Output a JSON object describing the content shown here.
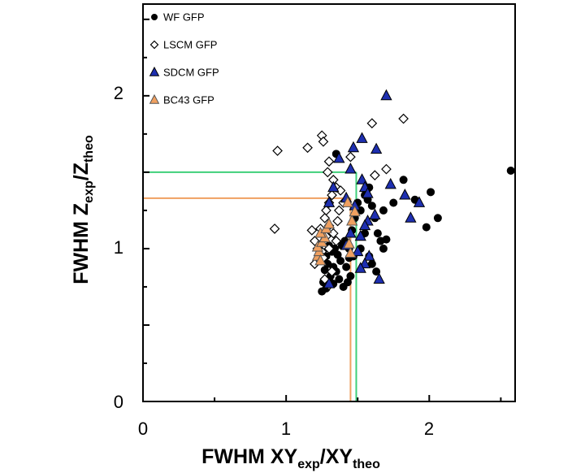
{
  "chart_data": {
    "type": "scatter",
    "xlim": [
      0,
      2.6
    ],
    "ylim": [
      0,
      2.6
    ],
    "x_ticks": [
      "0",
      "1",
      "2"
    ],
    "y_ticks": [
      "0",
      "1",
      "2"
    ],
    "xlabel": {
      "base": "FWHM XY",
      "sub1": "exp",
      "mid": "/XY",
      "sub2": "theo"
    },
    "ylabel": {
      "base": "FWHM Z",
      "sub1": "exp",
      "mid": "/Z",
      "sub2": "theo"
    },
    "legend_position": "top-left",
    "series": [
      {
        "name": "WF GFP",
        "marker": "circle",
        "color": "#000000",
        "edge": "#000000",
        "points": [
          [
            1.25,
            0.72
          ],
          [
            1.26,
            0.78
          ],
          [
            1.28,
            0.74
          ],
          [
            1.3,
            0.8
          ],
          [
            1.27,
            0.86
          ],
          [
            1.29,
            0.9
          ],
          [
            1.31,
            0.82
          ],
          [
            1.33,
            0.77
          ],
          [
            1.35,
            0.85
          ],
          [
            1.37,
            0.8
          ],
          [
            1.4,
            0.75
          ],
          [
            1.43,
            0.78
          ],
          [
            1.45,
            0.82
          ],
          [
            1.42,
            0.88
          ],
          [
            1.38,
            0.92
          ],
          [
            1.36,
            0.96
          ],
          [
            1.34,
            1.0
          ],
          [
            1.32,
            0.98
          ],
          [
            1.3,
            1.02
          ],
          [
            1.28,
            0.95
          ],
          [
            1.33,
            0.88
          ],
          [
            1.39,
            1.02
          ],
          [
            1.41,
            1.05
          ],
          [
            1.44,
            0.94
          ],
          [
            1.46,
            1.12
          ],
          [
            1.48,
            1.2
          ],
          [
            1.5,
            1.3
          ],
          [
            1.52,
            1.25
          ],
          [
            1.55,
            1.35
          ],
          [
            1.57,
            1.32
          ],
          [
            1.58,
            1.4
          ],
          [
            1.6,
            1.28
          ],
          [
            1.62,
            1.2
          ],
          [
            1.64,
            1.1
          ],
          [
            1.66,
            1.05
          ],
          [
            1.68,
            1.0
          ],
          [
            1.7,
            1.06
          ],
          [
            1.68,
            1.25
          ],
          [
            1.6,
            0.9
          ],
          [
            1.58,
            0.95
          ],
          [
            1.63,
            0.85
          ],
          [
            1.75,
            1.3
          ],
          [
            1.82,
            1.45
          ],
          [
            1.9,
            1.32
          ],
          [
            2.01,
            1.37
          ],
          [
            2.06,
            1.2
          ],
          [
            1.98,
            1.14
          ],
          [
            1.35,
            1.62
          ],
          [
            1.47,
            0.95
          ],
          [
            1.52,
            1.0
          ],
          [
            1.55,
            1.1
          ],
          [
            1.44,
            1.0
          ],
          [
            2.57,
            1.51
          ]
        ]
      },
      {
        "name": "LSCM GFP",
        "marker": "diamond",
        "color": "#ffffff",
        "edge": "#000000",
        "points": [
          [
            0.94,
            1.64
          ],
          [
            1.15,
            1.66
          ],
          [
            1.25,
            1.74
          ],
          [
            1.26,
            1.7
          ],
          [
            1.3,
            1.57
          ],
          [
            1.29,
            1.5
          ],
          [
            1.33,
            1.45
          ],
          [
            1.35,
            1.4
          ],
          [
            1.32,
            1.35
          ],
          [
            1.3,
            1.3
          ],
          [
            1.28,
            1.25
          ],
          [
            1.27,
            1.2
          ],
          [
            1.3,
            1.15
          ],
          [
            1.33,
            1.1
          ],
          [
            1.35,
            1.05
          ],
          [
            1.3,
            1.0
          ],
          [
            1.25,
            0.98
          ],
          [
            1.22,
            1.0
          ],
          [
            1.2,
            1.05
          ],
          [
            1.18,
            1.12
          ],
          [
            1.24,
            1.13
          ],
          [
            1.28,
            1.08
          ],
          [
            1.38,
            1.38
          ],
          [
            1.4,
            1.3
          ],
          [
            1.37,
            1.25
          ],
          [
            1.36,
            1.18
          ],
          [
            1.2,
            0.9
          ],
          [
            1.26,
            0.94
          ],
          [
            1.27,
            0.8
          ],
          [
            1.3,
            0.76
          ],
          [
            1.32,
            0.85
          ],
          [
            0.92,
            1.13
          ],
          [
            1.6,
            1.82
          ],
          [
            1.82,
            1.85
          ],
          [
            1.7,
            1.52
          ],
          [
            1.62,
            1.48
          ],
          [
            1.45,
            1.6
          ]
        ]
      },
      {
        "name": "SDCM GFP",
        "marker": "triangle",
        "color": "#1e2fb0",
        "edge": "#000000",
        "points": [
          [
            1.7,
            2.0
          ],
          [
            1.53,
            1.72
          ],
          [
            1.47,
            1.66
          ],
          [
            1.63,
            1.65
          ],
          [
            1.37,
            1.59
          ],
          [
            1.45,
            1.52
          ],
          [
            1.53,
            1.45
          ],
          [
            1.55,
            1.4
          ],
          [
            1.33,
            1.4
          ],
          [
            1.3,
            1.3
          ],
          [
            1.42,
            1.33
          ],
          [
            1.48,
            1.28
          ],
          [
            1.57,
            1.36
          ],
          [
            1.73,
            1.42
          ],
          [
            1.83,
            1.35
          ],
          [
            1.93,
            1.3
          ],
          [
            1.87,
            1.2
          ],
          [
            1.62,
            1.22
          ],
          [
            1.57,
            1.18
          ],
          [
            1.55,
            1.15
          ],
          [
            1.52,
            1.08
          ],
          [
            1.45,
            1.1
          ],
          [
            1.42,
            1.02
          ],
          [
            1.5,
            0.98
          ],
          [
            1.58,
            0.95
          ],
          [
            1.65,
            0.8
          ],
          [
            1.55,
            0.9
          ],
          [
            1.3,
            0.77
          ],
          [
            1.52,
            0.87
          ]
        ]
      },
      {
        "name": "BC43 GFP",
        "marker": "triangle",
        "color": "#f0a060",
        "edge": "#555555",
        "points": [
          [
            1.22,
            0.95
          ],
          [
            1.23,
            0.98
          ],
          [
            1.22,
            1.01
          ],
          [
            1.25,
            1.04
          ],
          [
            1.27,
            1.07
          ],
          [
            1.24,
            1.1
          ],
          [
            1.28,
            1.13
          ],
          [
            1.3,
            1.16
          ],
          [
            1.24,
            0.92
          ],
          [
            1.45,
            0.97
          ],
          [
            1.44,
            1.03
          ],
          [
            1.46,
            1.18
          ],
          [
            1.43,
            1.3
          ],
          [
            1.48,
            1.24
          ]
        ]
      }
    ],
    "reference_lines": [
      {
        "color": "#3fd07a",
        "x": 1.49,
        "y": 1.5
      },
      {
        "color": "#f0a060",
        "x": 1.45,
        "y": 1.33
      }
    ]
  }
}
